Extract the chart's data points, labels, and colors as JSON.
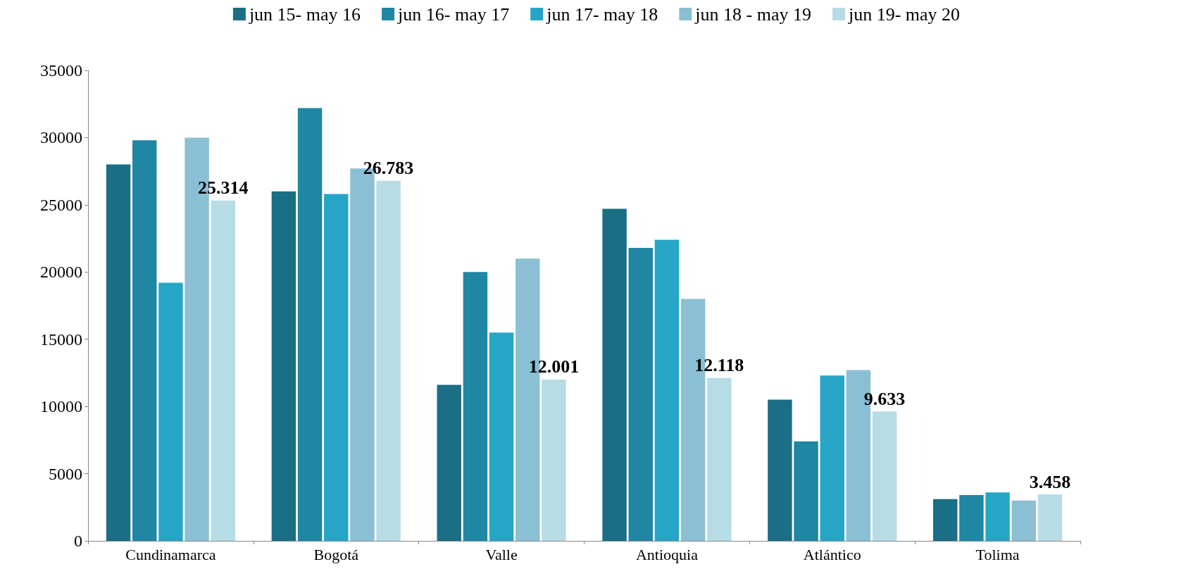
{
  "chart_data": {
    "type": "bar",
    "categories": [
      "Cundinamarca",
      "Bogotá",
      "Valle",
      "Antioquia",
      "Atlántico",
      "Tolima"
    ],
    "series": [
      {
        "name": "jun 15- may 16",
        "color": "#1a6e85",
        "values": [
          28000,
          26000,
          11600,
          24700,
          10500,
          3100
        ]
      },
      {
        "name": "jun 16- may 17",
        "color": "#1f86a3",
        "values": [
          29800,
          32200,
          20000,
          21800,
          7400,
          3400
        ]
      },
      {
        "name": "jun 17- may 18",
        "color": "#27a5c6",
        "values": [
          19200,
          25800,
          15500,
          22400,
          12300,
          3600
        ]
      },
      {
        "name": "jun 18 - may 19",
        "color": "#8bbfd4",
        "values": [
          30000,
          27700,
          21000,
          18000,
          12700,
          3000
        ]
      },
      {
        "name": "jun 19- may 20",
        "color": "#b7dce6",
        "values": [
          25314,
          26783,
          12001,
          12118,
          9633,
          3458
        ],
        "value_labels": [
          "25.314",
          "26.783",
          "12.001",
          "12.118",
          "9.633",
          "3.458"
        ]
      }
    ],
    "ylim": [
      0,
      35000
    ],
    "yticks": [
      0,
      5000,
      10000,
      15000,
      20000,
      25000,
      30000,
      35000
    ],
    "grid": false,
    "legend": "top"
  }
}
